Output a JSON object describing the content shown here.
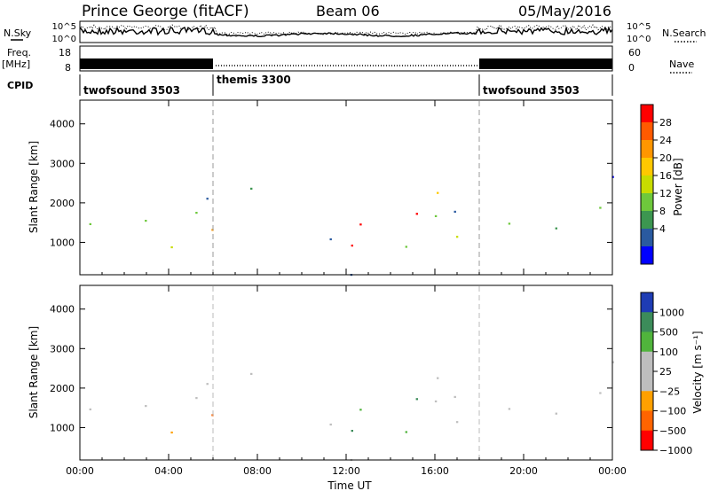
{
  "header": {
    "station": "Prince George (fitACF)",
    "beam": "Beam 06",
    "date": "05/May/2016"
  },
  "left_labels": {
    "nsky": "N.Sky",
    "freq": "Freq.",
    "freq_unit": "[MHz]",
    "cpid": "CPID"
  },
  "right_labels": {
    "nsearch": "N.Search",
    "nave": "Nave"
  },
  "cpid_segments": [
    {
      "label": "twofsound 3503",
      "start_h": 0,
      "end_h": 6
    },
    {
      "label": "themis 3300",
      "start_h": 6,
      "end_h": 18
    },
    {
      "label": "twofsound 3503",
      "start_h": 18,
      "end_h": 24
    }
  ],
  "noise_panel": {
    "left_ticks": [
      "10^5",
      "10^0"
    ],
    "right_ticks": [
      "10^5",
      "10^0"
    ]
  },
  "freq_panel": {
    "left_ticks": [
      "18",
      "8"
    ],
    "right_ticks": [
      "60",
      "0"
    ]
  },
  "power_colorbar": {
    "label": "Power [dB]",
    "ticks": [
      "28",
      "24",
      "20",
      "16",
      "12",
      "8",
      "4"
    ],
    "colors": [
      "#ff0000",
      "#ff5a00",
      "#ff9600",
      "#ffc800",
      "#c8dc00",
      "#6ec83c",
      "#3c9650",
      "#2a5aa0",
      "#0000ff"
    ]
  },
  "velocity_colorbar": {
    "label": "Velocity [m s⁻¹]",
    "ticks": [
      "1000",
      "500",
      "100",
      "25",
      "−25",
      "−100",
      "−500",
      "−1000"
    ],
    "colors": [
      "#1e3cb4",
      "#3c8c5a",
      "#50b43c",
      "#bebebe",
      "#bebebe",
      "#ffa000",
      "#ff6400",
      "#ff0000"
    ]
  },
  "chart_data": {
    "type": "heatmap",
    "x": {
      "label": "Time UT",
      "ticks": [
        "00:00",
        "04:00",
        "08:00",
        "12:00",
        "16:00",
        "20:00",
        "00:00"
      ],
      "range_h": [
        0,
        24
      ]
    },
    "y": {
      "label": "Slant Range [km]",
      "ticks": [
        "1000",
        "2000",
        "3000",
        "4000"
      ],
      "range_km": [
        180,
        4600
      ]
    },
    "series": [
      {
        "name": "Power [dB]",
        "colorbar_range": [
          4,
          28
        ]
      },
      {
        "name": "Velocity [m s⁻¹]",
        "colorbar_range": [
          -1000,
          1000
        ]
      }
    ]
  }
}
